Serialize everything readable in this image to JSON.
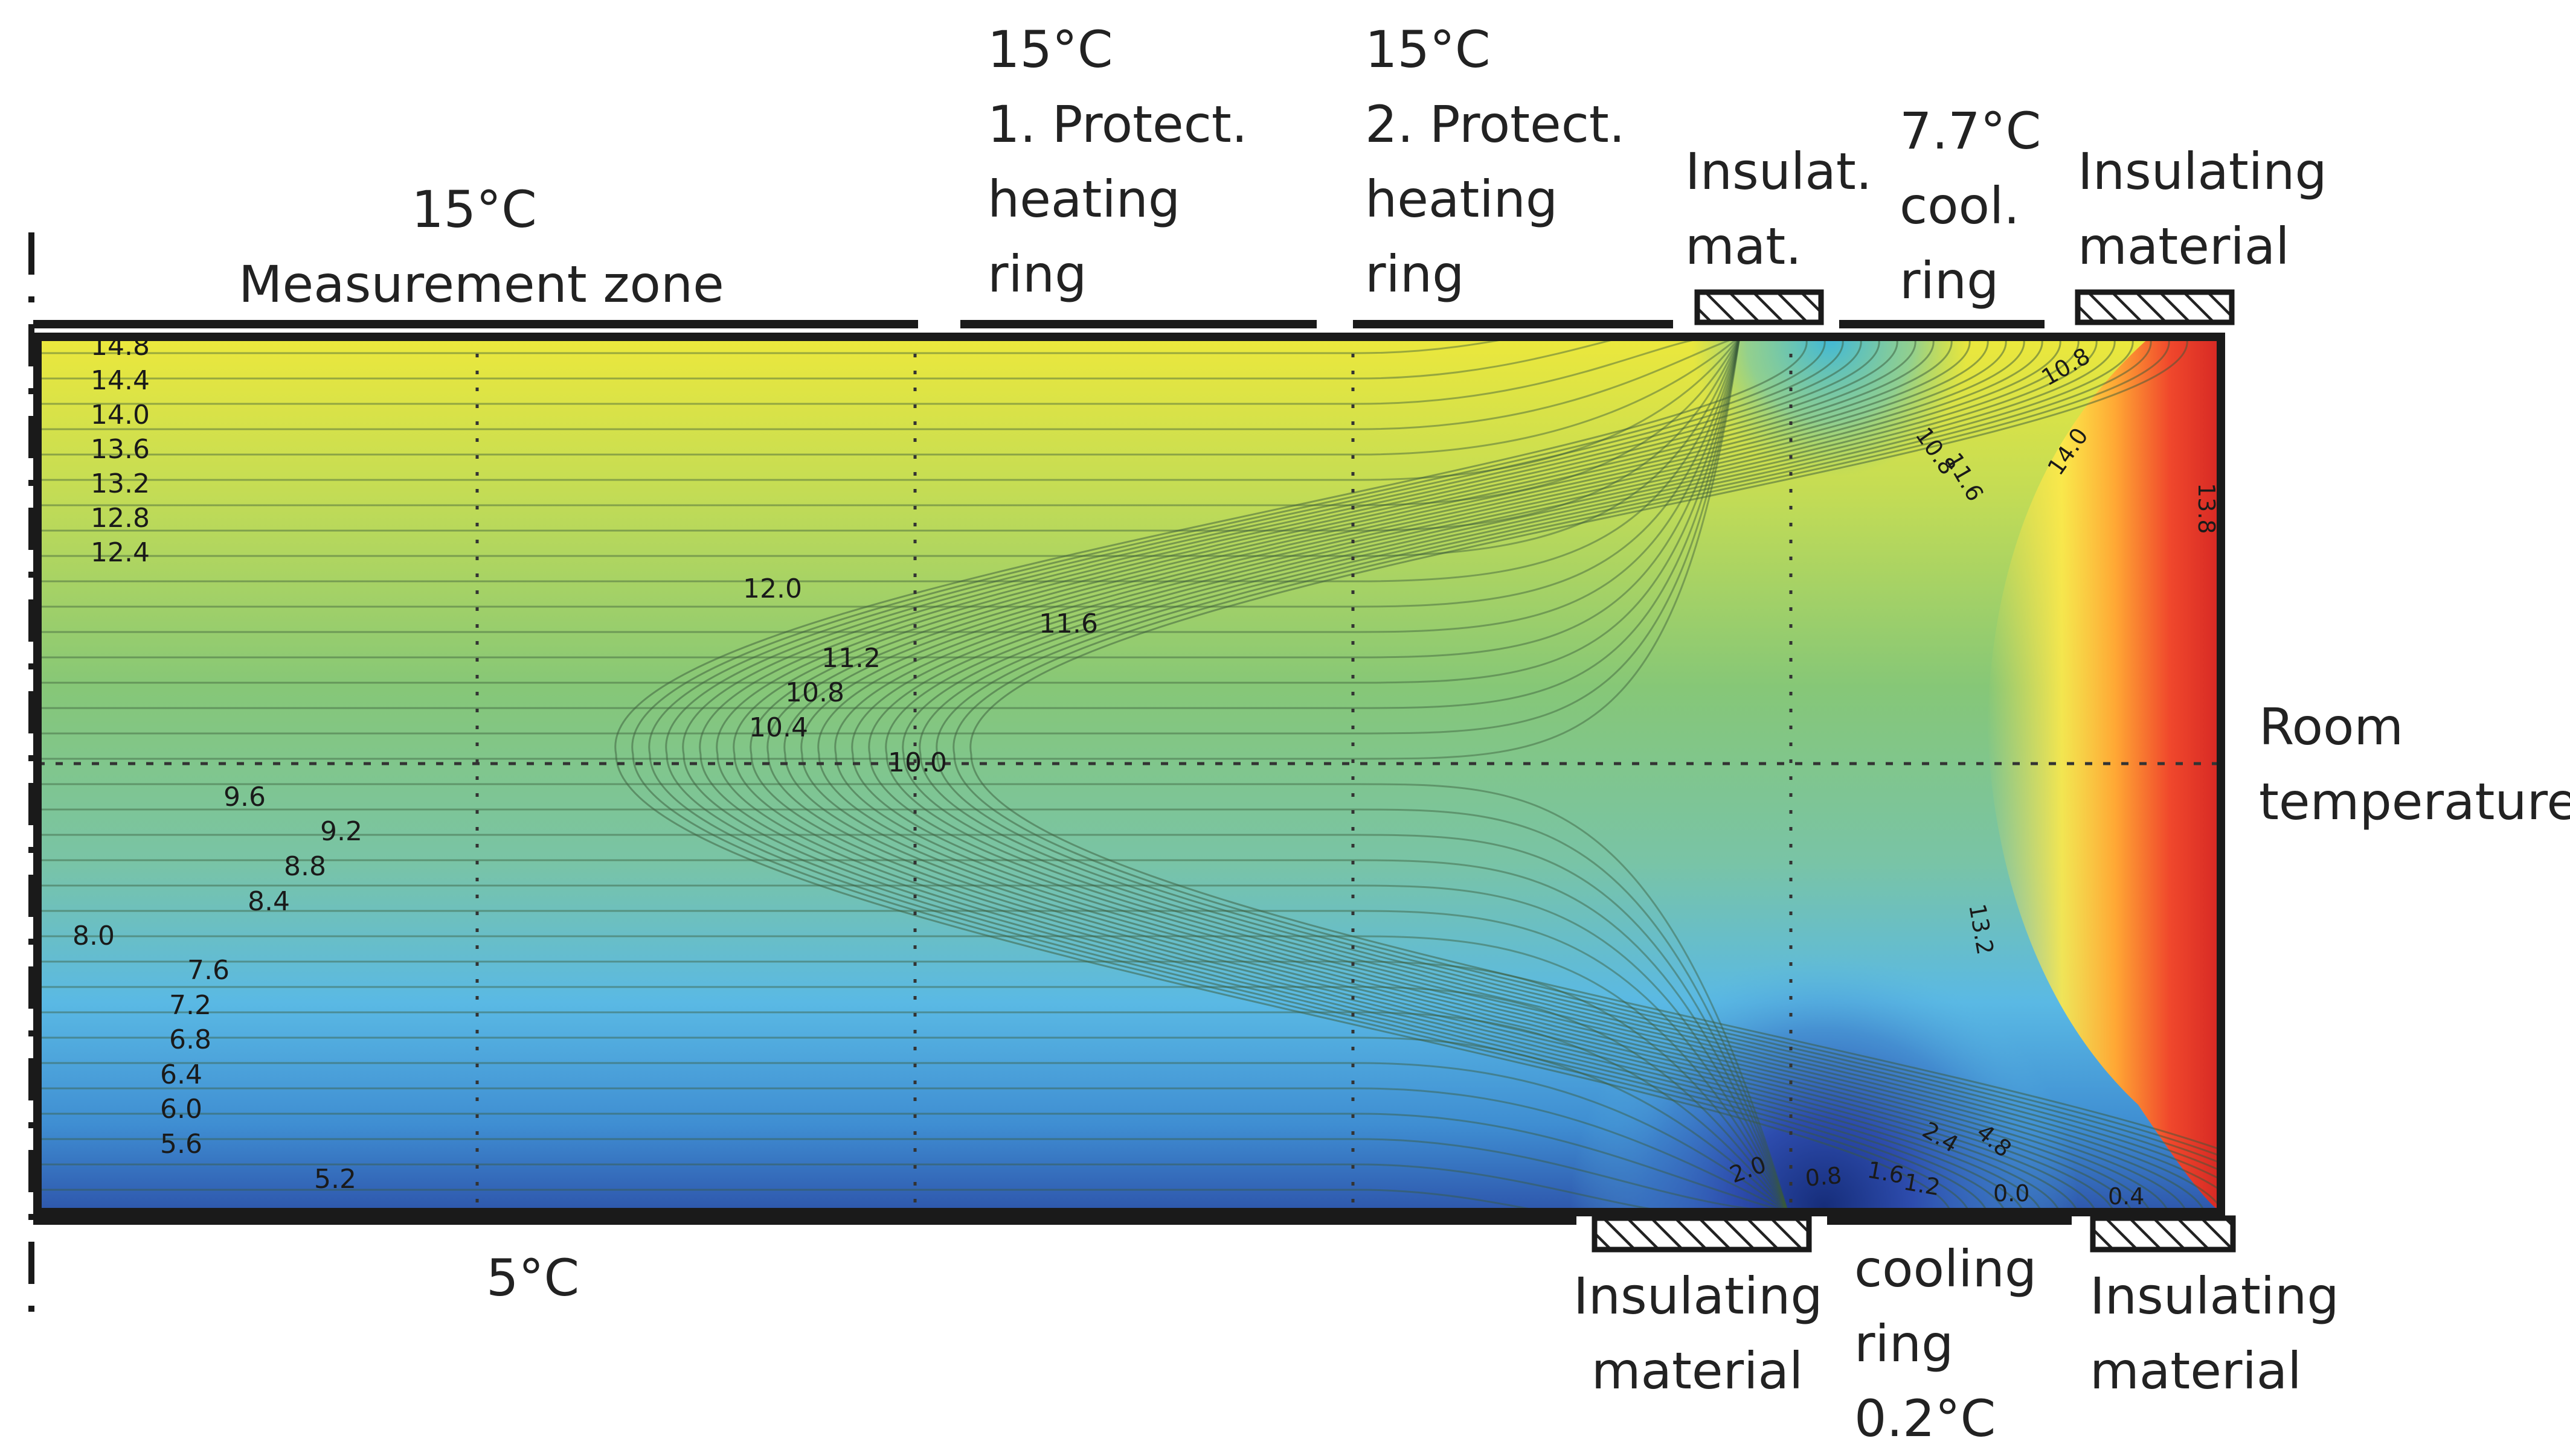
{
  "colors": {
    "cold": "#2a4ba8",
    "mid_low": "#5cc0e6",
    "mid": "#88c97a",
    "warm": "#ecec3e",
    "hot": "#e0302a",
    "contour": "#3a5a3a",
    "plate": "#1a1a1a"
  },
  "labels": {
    "measurement": {
      "temp": "15°C",
      "name": "Measurement zone"
    },
    "ring1": {
      "temp": "15°C",
      "line1": "1. Protect.",
      "line2": "heating",
      "line3": "ring"
    },
    "ring2": {
      "temp": "15°C",
      "line1": "2. Protect.",
      "line2": "heating",
      "line3": "ring"
    },
    "insulat_top": {
      "line1": "Insulat.",
      "line2": "mat."
    },
    "cool_top": {
      "line1": "7.7°C",
      "line2": "cool.",
      "line3": "ring"
    },
    "insul_top_right": {
      "line1": "Insulating",
      "line2": "material"
    },
    "room": {
      "line1": "Room",
      "line2": "temperature"
    },
    "bottom_plate": "5°C",
    "insul_bottom": {
      "line1": "Insulating",
      "line2": "material"
    },
    "cool_bottom": {
      "line1": "cooling",
      "line2": "ring",
      "line3": "0.2°C"
    },
    "insul_bottom_right": {
      "line1": "Insulating",
      "line2": "material"
    }
  },
  "contour_labels_left": [
    "14.8",
    "14.4",
    "14.0",
    "13.6",
    "13.2",
    "12.8",
    "12.4",
    "12.0",
    "11.6",
    "11.2",
    "10.8",
    "10.4",
    "10.0",
    "9.6",
    "9.2",
    "8.8",
    "8.4",
    "8.0",
    "7.6",
    "7.2",
    "6.8",
    "6.4",
    "6.0",
    "5.6",
    "5.2"
  ],
  "contour_labels_right": [
    "10.8",
    "11.6",
    "10.8",
    "14.0",
    "13.2",
    "2.0",
    "0.8",
    "1.6",
    "1.2",
    "0.0",
    "0.4",
    "2.4",
    "4.8",
    "13.8"
  ]
}
